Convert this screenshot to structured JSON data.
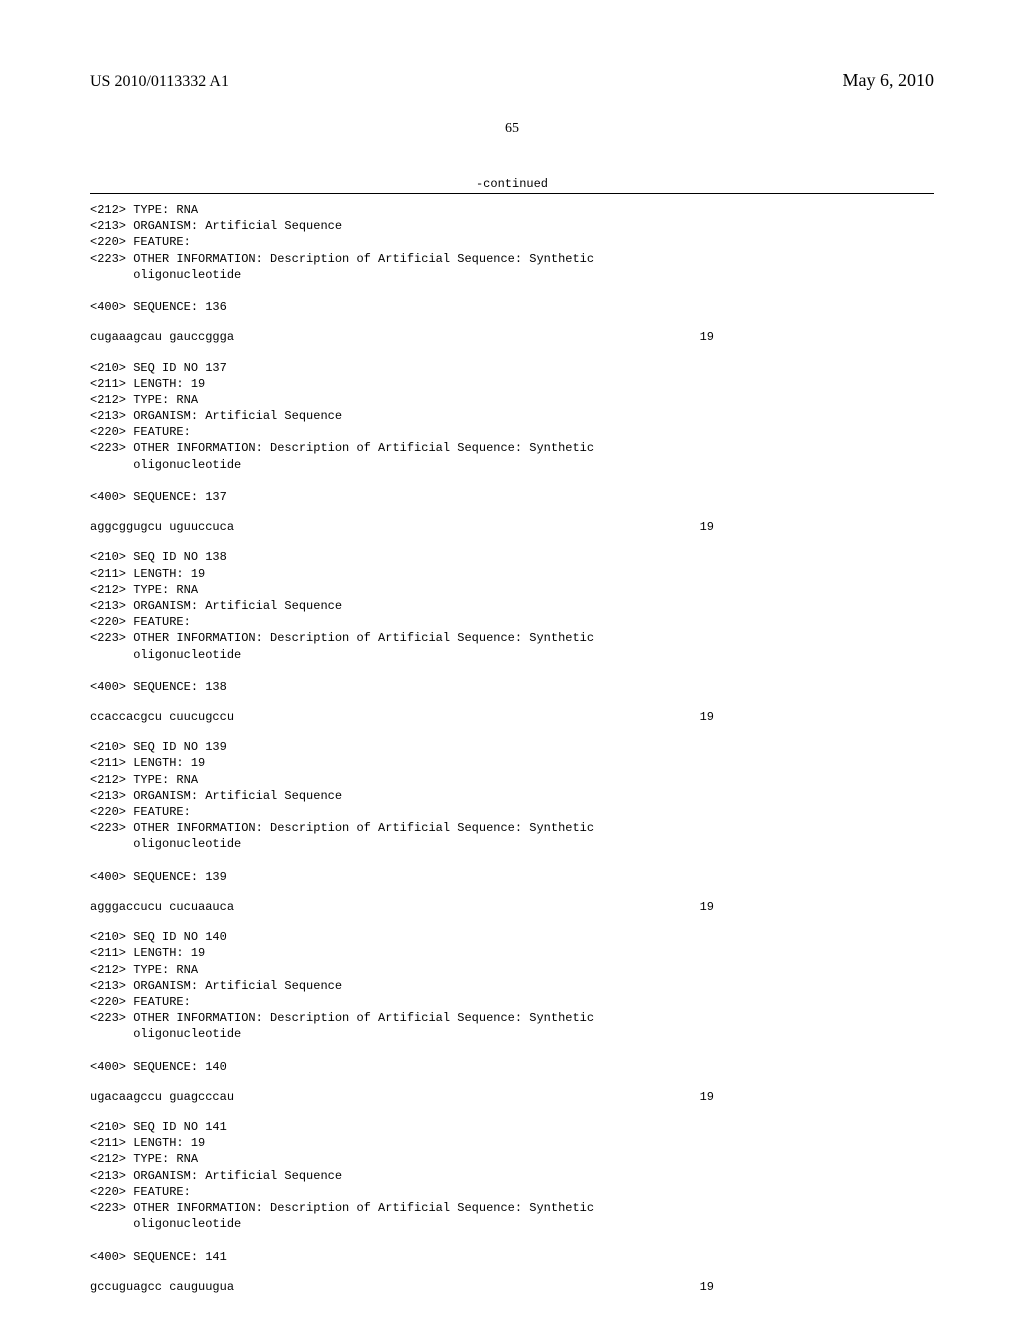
{
  "header": {
    "publication_id": "US 2010/0113332 A1",
    "publication_date": "May 6, 2010"
  },
  "page_number": "65",
  "continued_label": "-continued",
  "type_label": "<212> TYPE: RNA",
  "organism_label": "<213> ORGANISM: Artificial Sequence",
  "feature_label": "<220> FEATURE:",
  "other_info_line1": "<223> OTHER INFORMATION: Description of Artificial Sequence: Synthetic",
  "other_info_line2": "      oligonucleotide",
  "length_19": "<211> LENGTH: 19",
  "entries": [
    {
      "seq_label": "<400> SEQUENCE: 136",
      "partial": true,
      "sequence": "cugaaagcau gauccggga",
      "length": "19"
    },
    {
      "seq_id": "<210> SEQ ID NO 137",
      "seq_label": "<400> SEQUENCE: 137",
      "sequence": "aggcggugcu uguuccuca",
      "length": "19"
    },
    {
      "seq_id": "<210> SEQ ID NO 138",
      "seq_label": "<400> SEQUENCE: 138",
      "sequence": "ccaccacgcu cuucugccu",
      "length": "19"
    },
    {
      "seq_id": "<210> SEQ ID NO 139",
      "seq_label": "<400> SEQUENCE: 139",
      "sequence": "agggaccucu cucuaauca",
      "length": "19"
    },
    {
      "seq_id": "<210> SEQ ID NO 140",
      "seq_label": "<400> SEQUENCE: 140",
      "sequence": "ugacaagccu guagcccau",
      "length": "19"
    },
    {
      "seq_id": "<210> SEQ ID NO 141",
      "seq_label": "<400> SEQUENCE: 141",
      "sequence": "gccuguagcc cauguugua",
      "length": "19"
    }
  ]
}
